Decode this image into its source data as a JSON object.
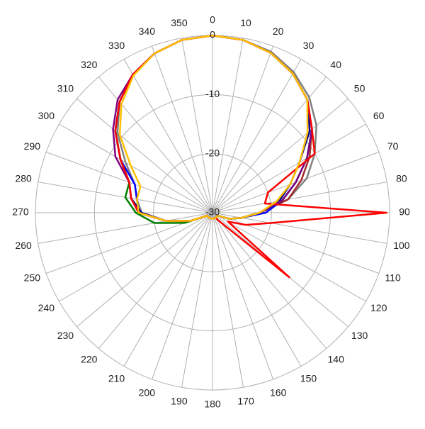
{
  "chart_data": {
    "type": "polar",
    "theta": [
      0,
      10,
      20,
      30,
      40,
      50,
      60,
      70,
      80,
      90,
      100,
      110,
      120,
      130,
      140,
      150,
      160,
      170,
      180,
      190,
      200,
      210,
      220,
      230,
      240,
      250,
      260,
      270,
      280,
      290,
      300,
      310,
      320,
      330,
      340,
      350
    ],
    "thetaticks": [
      0,
      10,
      20,
      30,
      40,
      50,
      60,
      70,
      80,
      90,
      100,
      110,
      120,
      130,
      140,
      150,
      160,
      170,
      180,
      190,
      200,
      210,
      220,
      230,
      240,
      250,
      260,
      270,
      280,
      290,
      300,
      310,
      320,
      330,
      340,
      350
    ],
    "rlim": [
      -30,
      0
    ],
    "rticks": [
      -30,
      -20,
      -10,
      0
    ],
    "grid": true,
    "series": [
      {
        "color": "#808080",
        "values": [
          0,
          -0.3,
          -1,
          -2.5,
          -4.5,
          -7,
          -10,
          -13,
          -17,
          -22,
          -25,
          -27,
          -29,
          -29,
          -29,
          -29,
          -29,
          -29,
          -29,
          -29,
          -29,
          -29,
          -29,
          -29,
          -29,
          -26,
          -22,
          -18,
          -17,
          -16,
          -13,
          -9,
          -5.5,
          -3,
          -1.3,
          -0.3
        ]
      },
      {
        "color": "#a52a2a",
        "values": [
          0,
          -0.3,
          -1.2,
          -2.8,
          -5,
          -8,
          -11,
          -14,
          -17,
          -22,
          -25,
          -27,
          -29,
          -29,
          -29,
          -29,
          -29,
          -29,
          -29,
          -29,
          -29,
          -29,
          -29,
          -29,
          -29,
          -26,
          -22,
          -17.5,
          -16,
          -15,
          -12,
          -8.5,
          -5.5,
          -3,
          -1.3,
          -0.3
        ]
      },
      {
        "color": "#00008b",
        "values": [
          0,
          -0.3,
          -1.2,
          -2.8,
          -5,
          -8.5,
          -13,
          -16,
          -18.5,
          -22,
          -25,
          -27,
          -29,
          -29,
          -29,
          -29,
          -29,
          -29,
          -29,
          -29,
          -29,
          -29,
          -29,
          -29,
          -29,
          -26,
          -22,
          -18,
          -16,
          -15,
          -12,
          -8.5,
          -5.5,
          -3,
          -1.3,
          -0.3
        ]
      },
      {
        "color": "#0000ff",
        "values": [
          0,
          -0.3,
          -1.2,
          -2.8,
          -5,
          -8,
          -11.5,
          -15,
          -18,
          -21,
          -25,
          -27,
          -29,
          -29,
          -29,
          -29,
          -29,
          -29,
          -29,
          -29,
          -29,
          -29,
          -29,
          -29,
          -29,
          -26,
          -22,
          -17.5,
          -17,
          -16,
          -12,
          -8.5,
          -5.5,
          -3,
          -1.3,
          -0.3
        ]
      },
      {
        "color": "#008000",
        "values": [
          0,
          -0.3,
          -1.2,
          -2.8,
          -5,
          -8,
          -11.5,
          -15,
          -18,
          -22,
          -25,
          -27,
          -29,
          -29,
          -29,
          -29,
          -29,
          -29,
          -29,
          -29,
          -29,
          -29,
          -29,
          -29,
          -29,
          -25,
          -20,
          -17,
          -15,
          -15,
          -12,
          -8.5,
          -5.5,
          -3,
          -1.3,
          -0.3
        ]
      },
      {
        "color": "#800080",
        "values": [
          0,
          -0.3,
          -1.2,
          -2.8,
          -5,
          -8,
          -11.5,
          -15,
          -18,
          -22,
          -25,
          -27,
          -29,
          -29,
          -29,
          -29,
          -29,
          -29,
          -29,
          -29,
          -29,
          -29,
          -29,
          -29,
          -29,
          -26,
          -22,
          -17.5,
          -16,
          -15,
          -11,
          -8,
          -5,
          -3,
          -1.3,
          -0.3
        ]
      },
      {
        "color": "#ff0000",
        "values": [
          0,
          -0.3,
          -1.2,
          -2.8,
          -5,
          -8,
          -10,
          -20,
          -21,
          -0.5,
          -20,
          -24,
          -27,
          -13,
          -28,
          -29,
          -29,
          -29,
          -29,
          -29,
          -29,
          -29,
          -29,
          -29,
          -29,
          -26,
          -22,
          -17.5,
          -16,
          -15,
          -12,
          -8.5,
          -5.5,
          -3,
          -1.3,
          -0.3
        ]
      },
      {
        "color": "#ffc000",
        "values": [
          0,
          -0.3,
          -1.2,
          -2.8,
          -5,
          -9,
          -13,
          -16,
          -19,
          -22,
          -25,
          -27,
          -29,
          -29,
          -29,
          -29,
          -29,
          -29,
          -29,
          -29,
          -29,
          -29,
          -29,
          -29,
          -29,
          -26,
          -22,
          -17.5,
          -17,
          -17,
          -14,
          -9.5,
          -6,
          -3.2,
          -1.3,
          -0.3
        ]
      }
    ]
  }
}
